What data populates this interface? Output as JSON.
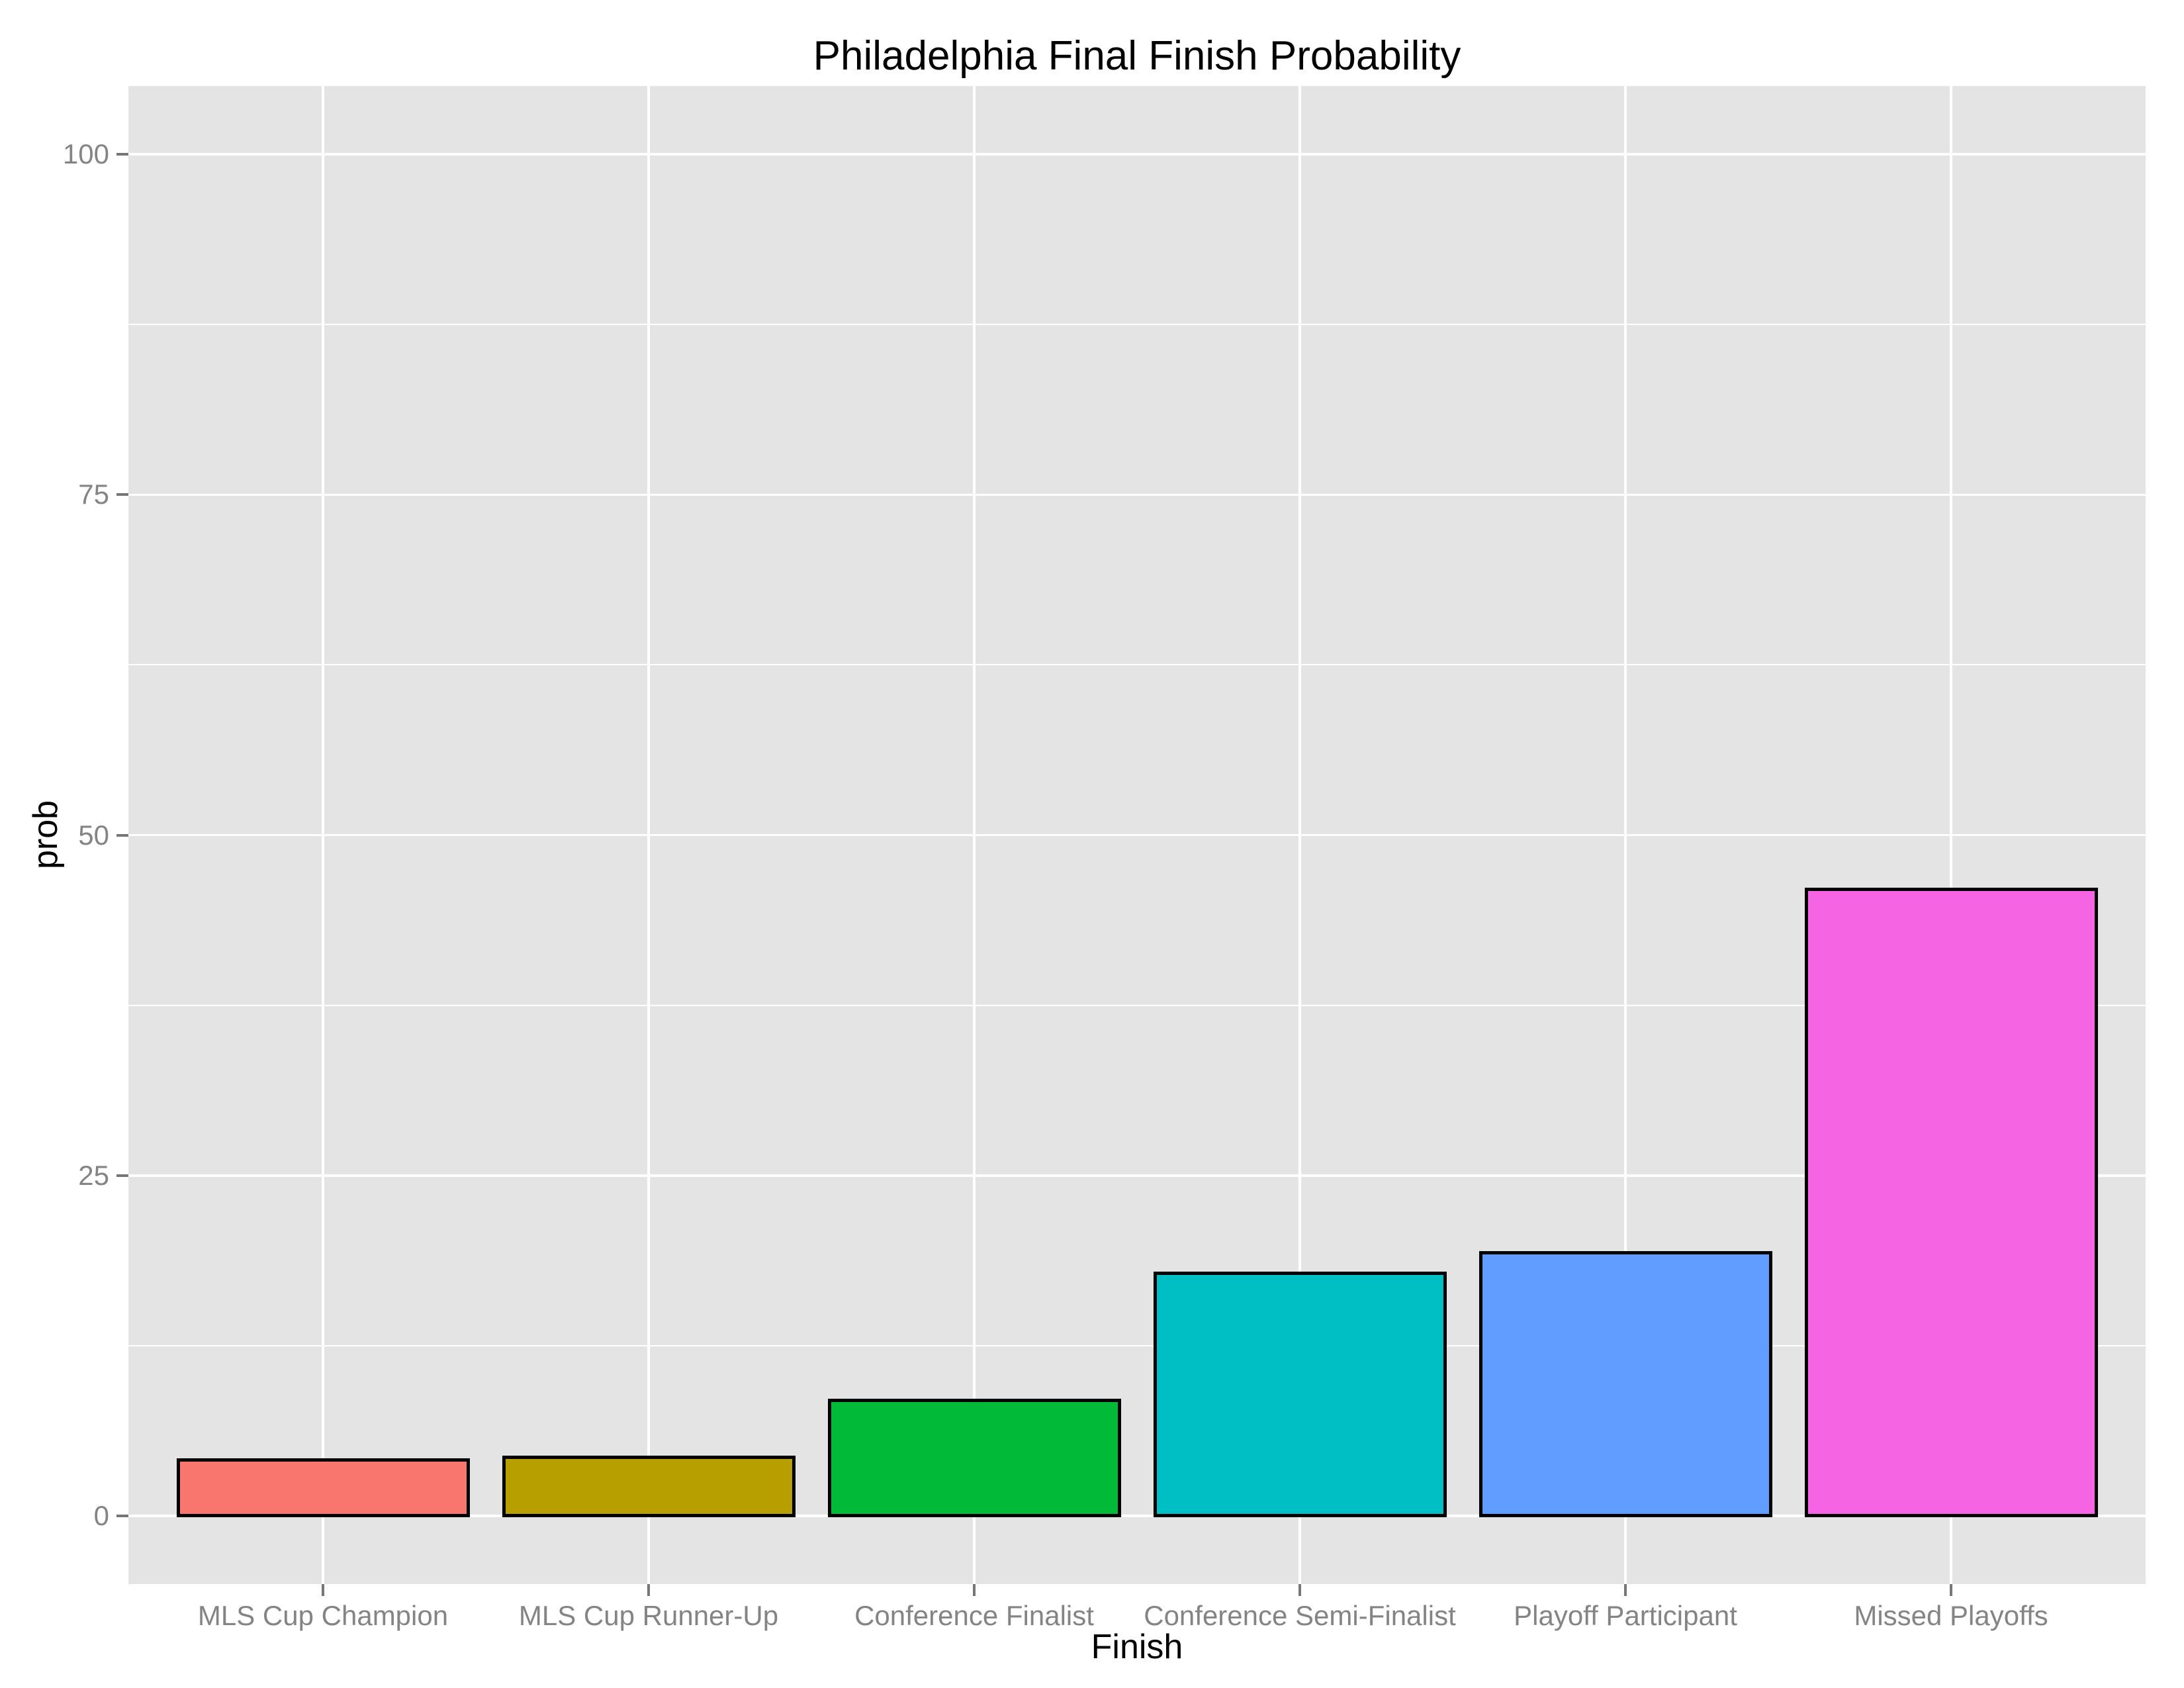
{
  "chart_data": {
    "type": "bar",
    "title": "Philadelphia Final Finish Probability",
    "xlabel": "Finish",
    "ylabel": "prob",
    "categories": [
      "MLS Cup Champion",
      "MLS Cup Runner-Up",
      "Conference Finalist",
      "Conference Semi-Finalist",
      "Playoff Participant",
      "Missed Playoffs"
    ],
    "values": [
      4.1,
      4.3,
      8.5,
      17.8,
      19.3,
      46.0
    ],
    "series_label": "prob",
    "ylim": [
      0,
      100
    ],
    "yticks": [
      0,
      25,
      50,
      75,
      100
    ],
    "ytick_labels": [
      "0",
      "25",
      "50",
      "75",
      "100"
    ],
    "minor_yticks": [
      12.5,
      37.5,
      62.5,
      87.5
    ],
    "grid": "major-and-minor, white on grey panel",
    "legend": "none",
    "colors": {
      "bar_fills": [
        "#F8766D",
        "#B79F00",
        "#00BA38",
        "#00BFC4",
        "#619CFF",
        "#F564E3"
      ],
      "bar_border": "#000000",
      "panel_background": "#E4E4E4",
      "gridline": "#FFFFFF",
      "tick_mark": "#767676",
      "tick_label": "#848484",
      "title_text": "#000000",
      "axis_title_text": "#000000"
    }
  }
}
